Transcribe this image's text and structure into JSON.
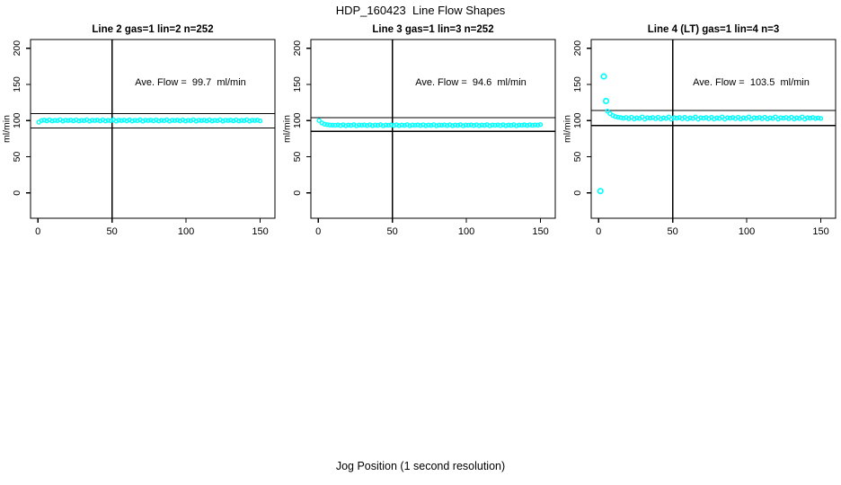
{
  "chart_data": {
    "type": "scatter",
    "title": "HDP_160423  Line Flow Shapes",
    "xlabel": "Jog Position (1 second resolution)",
    "ylabel": "ml/min",
    "x_ticks": [
      0,
      50,
      100,
      150
    ],
    "y_ticks": [
      0,
      50,
      100,
      150,
      200
    ],
    "xlim": [
      -5,
      160
    ],
    "ylim": [
      -35,
      212
    ],
    "grid": false,
    "legend": "none",
    "marker": "open-circle",
    "point_color": "#00ffff",
    "line_color": "#000000",
    "panels": [
      {
        "title": "Line 2 gas=1 lin=2 n=252",
        "annotation": "Ave. Flow =  99.7  ml/min",
        "ave_flow_ml_min": 99.7,
        "n": 252,
        "ref_lines_y": [
          109.7,
          89.7
        ],
        "vline_x": 50,
        "series": {
          "x_start": 0.6,
          "x_step": 1.8,
          "y": [
            97.7,
            100.1,
            100.7,
            99.6,
            101.0,
            99.4,
            100.4,
            99.9,
            101.1,
            99.2,
            100.5,
            100.1,
            100.7,
            99.6,
            101.0,
            99.4,
            100.4,
            99.9,
            101.1,
            99.2,
            100.5,
            100.1,
            100.7,
            99.6,
            101.0,
            99.4,
            100.4,
            99.9,
            101.1,
            99.2,
            100.5,
            100.1,
            100.7,
            99.6,
            101.0,
            99.4,
            100.4,
            99.9,
            101.1,
            99.2,
            100.5,
            100.1,
            100.7,
            99.6,
            101.0,
            99.4,
            100.4,
            99.9,
            101.1,
            99.2,
            100.5,
            100.1,
            100.7,
            99.6,
            101.0,
            99.4,
            100.4,
            99.9,
            101.1,
            99.2,
            100.5,
            100.1,
            100.7,
            99.6,
            101.0,
            99.4,
            100.4,
            99.9,
            101.1,
            99.2,
            100.5,
            100.1,
            100.7,
            99.6,
            101.0,
            99.4,
            100.4,
            99.9,
            101.1,
            99.2,
            100.5,
            100.1,
            100.7,
            99.6
          ]
        },
        "extra_points": []
      },
      {
        "title": "Line 3 gas=1 lin=3 n=252",
        "annotation": "Ave. Flow =  94.6  ml/min",
        "ave_flow_ml_min": 94.6,
        "n": 252,
        "ref_lines_y": [
          104.1,
          85.1
        ],
        "vline_x": 50,
        "series": {
          "x_start": 0.6,
          "x_step": 1.8,
          "y": [
            100.0,
            96.8,
            95.0,
            94.3,
            93.9,
            93.7,
            93.6,
            94.0,
            93.2,
            94.2,
            93.0,
            93.8,
            93.4,
            94.3,
            92.9,
            93.8,
            93.6,
            94.0,
            93.2,
            94.2,
            93.0,
            93.8,
            93.4,
            94.3,
            92.9,
            93.8,
            93.6,
            94.0,
            93.2,
            94.2,
            93.0,
            93.8,
            93.4,
            94.3,
            92.9,
            93.8,
            93.6,
            94.0,
            93.2,
            94.2,
            93.0,
            93.8,
            93.4,
            94.3,
            92.9,
            93.8,
            93.6,
            94.0,
            93.2,
            94.2,
            93.0,
            93.8,
            93.4,
            94.3,
            92.9,
            93.8,
            93.6,
            94.0,
            93.2,
            94.2,
            93.0,
            93.8,
            93.4,
            94.3,
            92.9,
            93.8,
            93.6,
            94.0,
            93.2,
            94.2,
            93.0,
            93.8,
            93.4,
            94.3,
            92.9,
            93.8,
            93.6,
            94.1,
            93.3,
            94.2,
            93.5,
            94.0,
            93.7,
            94.5
          ]
        },
        "extra_points": []
      },
      {
        "title": "Line 4 (LT) gas=1 lin=4 n=3",
        "annotation": "Ave. Flow =  103.5  ml/min",
        "ave_flow_ml_min": 103.5,
        "n": 3,
        "ref_lines_y": [
          113.9,
          93.2
        ],
        "vline_x": 50,
        "series": {
          "x_start": 6,
          "x_step": 1.8,
          "y": [
            113.0,
            109.5,
            107.0,
            105.5,
            104.6,
            104.0,
            103.3,
            104.2,
            102.6,
            104.6,
            102.2,
            103.7,
            102.9,
            105.0,
            102.0,
            103.9,
            103.3,
            104.2,
            102.6,
            104.6,
            102.2,
            103.7,
            102.9,
            105.0,
            102.0,
            103.9,
            103.3,
            104.2,
            102.6,
            104.6,
            102.2,
            103.7,
            102.9,
            105.0,
            102.0,
            103.9,
            103.3,
            104.2,
            102.6,
            104.6,
            102.2,
            103.7,
            102.9,
            105.0,
            102.0,
            103.9,
            103.3,
            104.2,
            102.6,
            104.6,
            102.2,
            103.7,
            102.9,
            105.0,
            102.0,
            103.9,
            103.3,
            104.2,
            102.6,
            104.6,
            102.2,
            103.7,
            102.9,
            105.0,
            102.0,
            103.9,
            103.3,
            104.2,
            102.6,
            104.6,
            102.2,
            103.7,
            102.9,
            105.0,
            102.0,
            103.9,
            103.3,
            104.2,
            102.8,
            103.6,
            103.0
          ]
        },
        "extra_points": [
          [
            1.2,
            2.5
          ],
          [
            3.5,
            161.0
          ],
          [
            5.0,
            127.0
          ]
        ]
      }
    ]
  }
}
